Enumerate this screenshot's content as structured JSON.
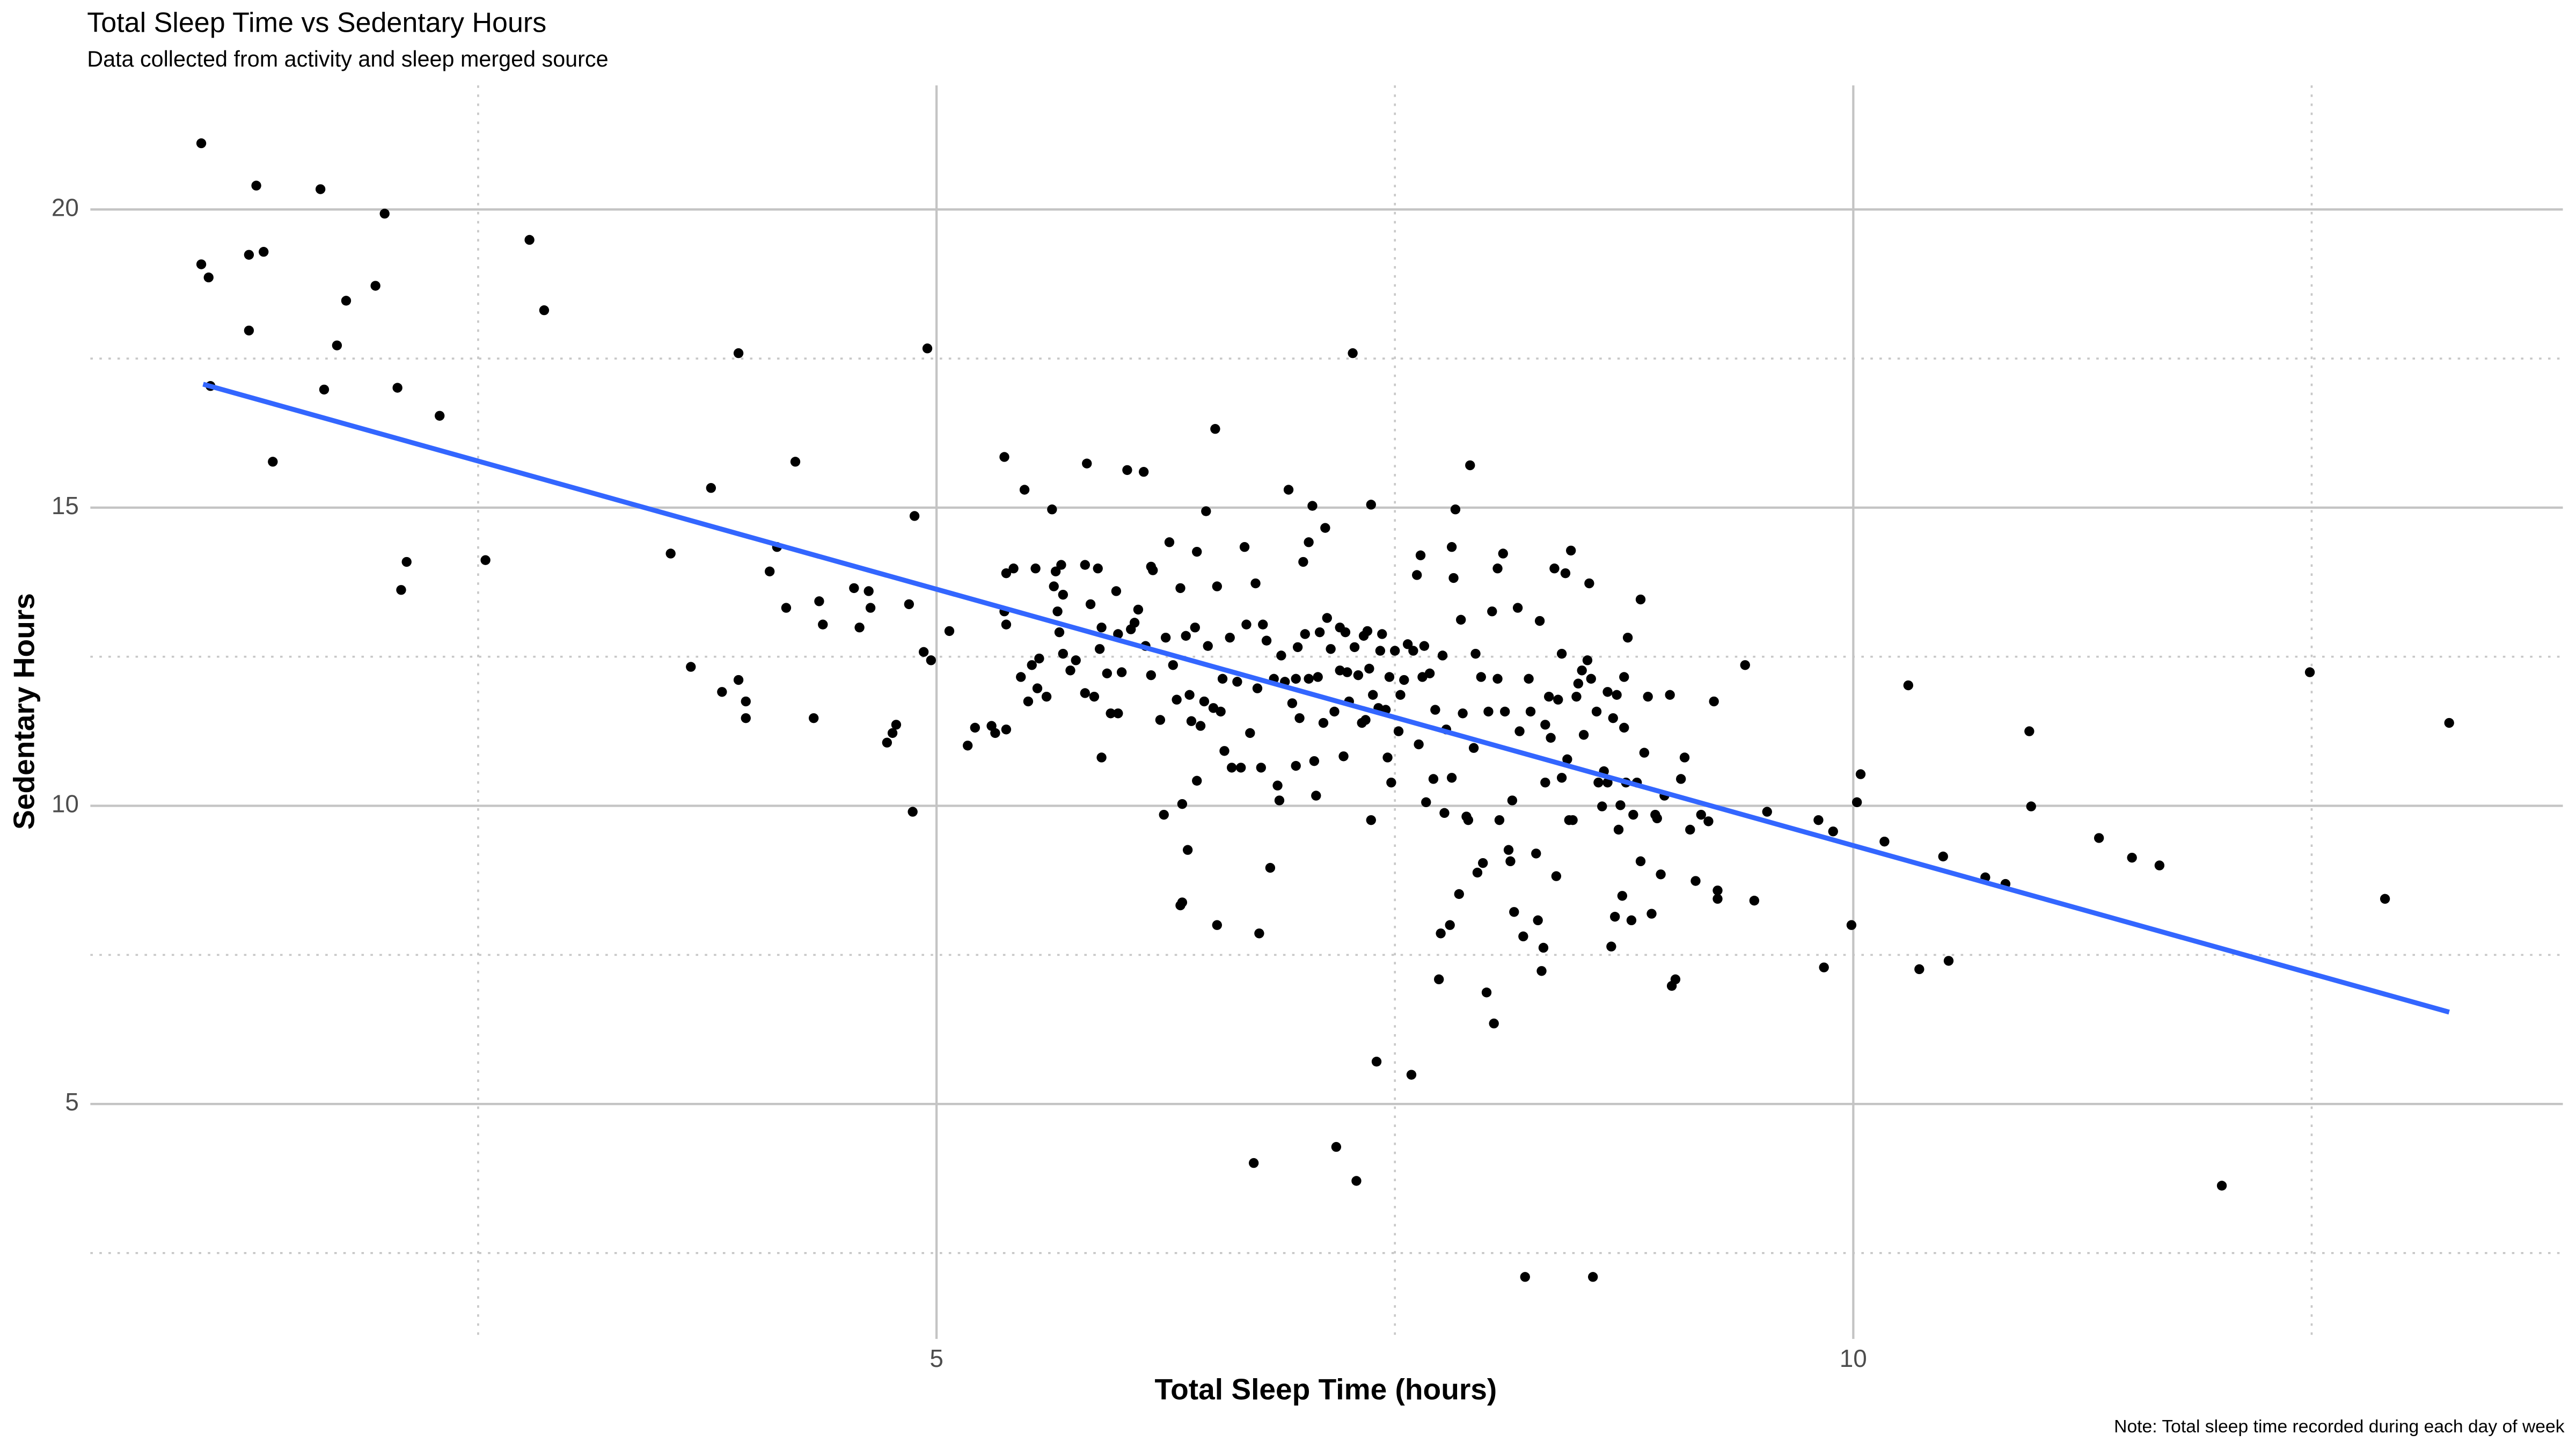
{
  "chart_data": {
    "type": "scatter",
    "title": "Total Sleep Time vs Sedentary Hours",
    "subtitle": "Data collected from activity and sleep merged source",
    "x_label": "Total Sleep Time (hours)",
    "y_label": "Sedentary Hours",
    "caption": "Note: Total sleep time recorded during each day of week",
    "color": "#000000",
    "grid": true,
    "xlim": [
      0.385,
      13.87
    ],
    "ylim": [
      1.06,
      22.08
    ],
    "xticks": [
      5,
      10
    ],
    "yticks": [
      5,
      10,
      15,
      20
    ],
    "minor_xticks": [
      2.5,
      7.5,
      12.5
    ],
    "minor_yticks": [
      2.5,
      7.5,
      12.5,
      17.5
    ],
    "trend_line": {
      "x": [
        1.0,
        13.25
      ],
      "y": [
        17.07,
        6.54
      ],
      "color": "#3366ff"
    },
    "x": [
      0.99,
      0.99,
      1.03,
      1.04,
      1.29,
      1.25,
      1.33,
      1.25,
      1.38,
      1.64,
      1.66,
      1.73,
      1.78,
      1.94,
      1.99,
      2.06,
      2.11,
      2.08,
      2.29,
      2.54,
      2.78,
      2.86,
      3.55,
      3.66,
      3.77,
      3.83,
      3.92,
      3.92,
      3.96,
      3.96,
      4.09,
      4.13,
      4.18,
      4.23,
      4.33,
      4.36,
      4.38,
      4.55,
      4.58,
      4.63,
      4.64,
      4.73,
      4.76,
      4.78,
      4.85,
      4.88,
      4.87,
      4.93,
      4.95,
      4.97,
      5.07,
      5.17,
      5.21,
      5.3,
      5.32,
      5.38,
      5.37,
      5.38,
      5.37,
      5.38,
      5.42,
      5.46,
      5.48,
      5.5,
      5.52,
      5.55,
      5.56,
      5.54,
      5.6,
      5.64,
      5.63,
      5.65,
      5.66,
      5.69,
      5.68,
      5.67,
      5.69,
      5.73,
      5.76,
      5.81,
      5.81,
      5.82,
      5.84,
      5.86,
      5.88,
      5.89,
      5.9,
      5.9,
      5.93,
      5.95,
      5.98,
      5.99,
      5.99,
      6.01,
      6.04,
      6.06,
      6.08,
      6.1,
      6.13,
      6.14,
      6.17,
      6.17,
      6.18,
      6.22,
      6.24,
      6.25,
      6.27,
      6.29,
      6.31,
      6.33,
      6.33,
      6.34,
      6.34,
      6.36,
      6.37,
      6.38,
      6.39,
      6.41,
      6.42,
      6.42,
      6.44,
      6.46,
      6.47,
      6.48,
      6.51,
      6.52,
      6.53,
      6.53,
      6.55,
      6.56,
      6.57,
      6.6,
      6.61,
      6.64,
      6.66,
      6.68,
      6.69,
      6.71,
      6.73,
      6.74,
      6.75,
      6.76,
      6.77,
      6.78,
      6.8,
      6.82,
      6.84,
      6.86,
      6.87,
      6.88,
      6.9,
      6.92,
      6.94,
      6.96,
      6.96,
      6.97,
      6.98,
      7.0,
      7.01,
      7.03,
      7.03,
      7.05,
      7.06,
      7.07,
      7.08,
      7.09,
      7.11,
      7.12,
      7.13,
      7.15,
      7.17,
      7.18,
      7.2,
      7.2,
      7.22,
      7.23,
      7.24,
      7.25,
      7.27,
      7.28,
      7.29,
      7.3,
      7.32,
      7.33,
      7.34,
      7.35,
      7.36,
      7.37,
      7.37,
      7.38,
      7.4,
      7.41,
      7.42,
      7.43,
      7.45,
      7.46,
      7.47,
      7.48,
      7.5,
      7.52,
      7.53,
      7.55,
      7.57,
      7.59,
      7.6,
      7.62,
      7.63,
      7.64,
      7.65,
      7.66,
      7.67,
      7.69,
      7.71,
      7.72,
      7.74,
      7.75,
      7.76,
      7.77,
      7.78,
      7.8,
      7.81,
      7.81,
      7.82,
      7.83,
      7.85,
      7.86,
      7.87,
      7.89,
      7.9,
      7.91,
      7.93,
      7.94,
      7.95,
      7.97,
      7.98,
      8.0,
      8.01,
      8.03,
      8.04,
      8.06,
      8.06,
      8.07,
      8.09,
      8.1,
      8.12,
      8.13,
      8.14,
      8.15,
      8.17,
      8.18,
      8.2,
      8.21,
      8.23,
      8.24,
      8.27,
      8.28,
      8.29,
      8.3,
      8.31,
      8.32,
      8.32,
      8.34,
      8.35,
      8.37,
      8.38,
      8.39,
      8.41,
      8.41,
      8.43,
      8.44,
      8.45,
      8.46,
      8.47,
      8.49,
      8.5,
      8.52,
      8.53,
      8.55,
      8.56,
      8.57,
      8.58,
      8.6,
      8.61,
      8.63,
      8.64,
      8.66,
      8.66,
      8.68,
      8.69,
      8.7,
      8.71,
      8.72,
      8.73,
      8.74,
      8.75,
      8.75,
      8.76,
      8.77,
      8.79,
      8.8,
      8.82,
      8.84,
      8.84,
      8.86,
      8.88,
      8.9,
      8.92,
      8.93,
      8.95,
      8.97,
      9.0,
      9.01,
      9.03,
      9.06,
      9.08,
      9.11,
      9.14,
      9.17,
      9.21,
      9.24,
      9.26,
      9.26,
      9.41,
      9.46,
      9.53,
      9.81,
      9.84,
      9.89,
      9.99,
      10.02,
      10.04,
      10.17,
      10.3,
      10.36,
      10.49,
      10.52,
      10.72,
      10.83,
      10.96,
      10.97,
      11.34,
      11.52,
      11.67,
      12.01,
      12.49,
      12.9,
      13.25
    ],
    "y": [
      21.11,
      19.08,
      18.86,
      17.04,
      20.4,
      19.24,
      19.29,
      17.97,
      15.77,
      20.34,
      16.98,
      17.72,
      18.47,
      18.72,
      19.93,
      17.01,
      14.09,
      13.62,
      16.54,
      14.12,
      19.49,
      18.31,
      14.23,
      12.33,
      15.33,
      11.91,
      17.59,
      12.11,
      11.75,
      11.47,
      13.93,
      14.34,
      13.32,
      15.77,
      11.47,
      13.43,
      13.04,
      13.65,
      12.99,
      13.6,
      13.32,
      11.06,
      11.22,
      11.36,
      13.38,
      14.86,
      9.9,
      12.58,
      17.67,
      12.44,
      12.93,
      11.01,
      11.31,
      11.34,
      11.22,
      11.28,
      15.85,
      13.9,
      13.26,
      13.04,
      13.98,
      12.16,
      15.3,
      11.75,
      12.36,
      11.97,
      12.47,
      13.98,
      11.83,
      13.68,
      14.97,
      13.93,
      13.26,
      12.55,
      14.04,
      12.91,
      13.54,
      12.27,
      12.44,
      11.89,
      14.04,
      15.74,
      13.38,
      11.83,
      13.98,
      12.63,
      10.81,
      12.99,
      12.22,
      11.55,
      13.6,
      12.88,
      11.55,
      12.24,
      15.63,
      12.96,
      13.07,
      13.29,
      15.6,
      12.68,
      14.01,
      12.19,
      13.95,
      11.44,
      9.85,
      12.82,
      14.42,
      12.36,
      11.78,
      13.65,
      8.33,
      8.38,
      10.03,
      12.85,
      9.26,
      11.86,
      11.42,
      12.99,
      10.42,
      14.26,
      11.34,
      11.75,
      14.94,
      12.68,
      11.64,
      16.32,
      8.0,
      13.68,
      11.58,
      12.13,
      10.92,
      12.82,
      10.64,
      12.08,
      10.64,
      14.34,
      13.04,
      11.22,
      4.01,
      13.73,
      11.97,
      7.86,
      10.64,
      13.04,
      12.77,
      8.96,
      12.13,
      10.34,
      10.09,
      12.52,
      12.08,
      15.3,
      11.72,
      10.67,
      12.13,
      12.66,
      11.47,
      14.09,
      12.88,
      12.13,
      14.42,
      15.03,
      10.75,
      10.17,
      12.16,
      12.91,
      11.39,
      14.66,
      13.15,
      12.63,
      11.58,
      4.28,
      12.27,
      12.99,
      10.83,
      12.91,
      12.24,
      11.75,
      17.59,
      12.66,
      3.71,
      12.19,
      11.39,
      12.85,
      11.44,
      12.93,
      12.3,
      9.76,
      15.05,
      11.86,
      5.71,
      11.64,
      12.6,
      12.88,
      11.61,
      10.81,
      12.16,
      10.39,
      12.6,
      11.25,
      11.86,
      12.11,
      12.71,
      5.49,
      12.6,
      13.87,
      11.03,
      14.2,
      12.16,
      12.68,
      10.06,
      12.22,
      10.45,
      11.61,
      7.09,
      7.86,
      12.52,
      9.88,
      11.28,
      8.0,
      14.34,
      10.47,
      13.82,
      14.97,
      8.52,
      13.12,
      11.55,
      9.82,
      9.76,
      15.71,
      10.97,
      12.55,
      8.88,
      12.16,
      9.04,
      6.87,
      11.58,
      13.26,
      6.35,
      13.98,
      12.13,
      9.76,
      14.23,
      11.58,
      9.26,
      9.07,
      10.09,
      8.22,
      13.32,
      11.25,
      7.81,
      2.1,
      12.13,
      11.58,
      9.2,
      8.08,
      13.1,
      7.23,
      7.62,
      10.39,
      11.36,
      11.83,
      11.14,
      13.98,
      8.82,
      11.78,
      12.55,
      10.47,
      13.9,
      10.78,
      9.76,
      14.28,
      9.76,
      11.83,
      12.05,
      12.27,
      11.19,
      12.44,
      13.73,
      12.13,
      2.1,
      11.58,
      10.39,
      9.99,
      10.58,
      10.39,
      11.91,
      7.64,
      11.47,
      8.14,
      11.86,
      9.6,
      10.01,
      8.49,
      12.16,
      11.31,
      10.39,
      12.82,
      8.08,
      9.85,
      10.39,
      9.07,
      13.46,
      10.89,
      11.83,
      8.19,
      9.85,
      9.79,
      8.85,
      10.17,
      11.86,
      6.98,
      7.09,
      10.45,
      10.81,
      9.6,
      8.74,
      9.85,
      9.74,
      11.75,
      8.58,
      8.44,
      12.36,
      8.41,
      9.9,
      9.76,
      7.29,
      9.57,
      8.0,
      10.06,
      10.53,
      9.4,
      12.02,
      7.26,
      9.15,
      7.4,
      8.8,
      8.69,
      11.25,
      9.99,
      9.46,
      9.13,
      9.0,
      3.63,
      12.24,
      8.44,
      11.39
    ]
  }
}
